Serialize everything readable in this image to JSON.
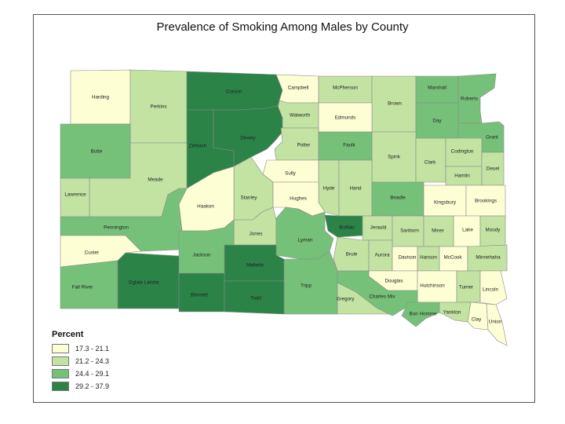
{
  "map": {
    "title": "Prevalence of Smoking Among Males by County",
    "legend": {
      "title": "Percent",
      "classes": [
        {
          "label": "17.3 - 21.1",
          "color": "#fefed5"
        },
        {
          "label": "21.2 - 24.3",
          "color": "#c2e3a2"
        },
        {
          "label": "24.4 - 29.1",
          "color": "#76c179"
        },
        {
          "label": "29.2 - 37.9",
          "color": "#2b8348"
        }
      ]
    },
    "counties": [
      {
        "name": "Harding",
        "class": 0
      },
      {
        "name": "Perkins",
        "class": 1
      },
      {
        "name": "Corson",
        "class": 3
      },
      {
        "name": "Campbell",
        "class": 0
      },
      {
        "name": "McPherson",
        "class": 1
      },
      {
        "name": "Brown",
        "class": 1
      },
      {
        "name": "Marshall",
        "class": 2
      },
      {
        "name": "Roberts",
        "class": 2
      },
      {
        "name": "Walworth",
        "class": 1
      },
      {
        "name": "Edmunds",
        "class": 0
      },
      {
        "name": "Day",
        "class": 2
      },
      {
        "name": "Grant",
        "class": 2
      },
      {
        "name": "Butte",
        "class": 2
      },
      {
        "name": "Ziebach",
        "class": 3
      },
      {
        "name": "Dewey",
        "class": 3
      },
      {
        "name": "Potter",
        "class": 1
      },
      {
        "name": "Faulk",
        "class": 2
      },
      {
        "name": "Spink",
        "class": 1
      },
      {
        "name": "Clark",
        "class": 1
      },
      {
        "name": "Codington",
        "class": 1
      },
      {
        "name": "Hamlin",
        "class": 1
      },
      {
        "name": "Deuel",
        "class": 1
      },
      {
        "name": "Meade",
        "class": 1
      },
      {
        "name": "Sully",
        "class": 0
      },
      {
        "name": "Hyde",
        "class": 1
      },
      {
        "name": "Hand",
        "class": 1
      },
      {
        "name": "Beadle",
        "class": 2
      },
      {
        "name": "Kingsbury",
        "class": 0
      },
      {
        "name": "Brookings",
        "class": 0
      },
      {
        "name": "Lawrence",
        "class": 1
      },
      {
        "name": "Stanley",
        "class": 1
      },
      {
        "name": "Hughes",
        "class": 0
      },
      {
        "name": "Haakon",
        "class": 0
      },
      {
        "name": "Pennington",
        "class": 2
      },
      {
        "name": "Buffalo",
        "class": 3
      },
      {
        "name": "Jerauld",
        "class": 1
      },
      {
        "name": "Sanborn",
        "class": 1
      },
      {
        "name": "Miner",
        "class": 1
      },
      {
        "name": "Lake",
        "class": 0
      },
      {
        "name": "Moody",
        "class": 1
      },
      {
        "name": "Jones",
        "class": 1
      },
      {
        "name": "Lyman",
        "class": 2
      },
      {
        "name": "Custer",
        "class": 0
      },
      {
        "name": "Jackson",
        "class": 2
      },
      {
        "name": "Brule",
        "class": 1
      },
      {
        "name": "Aurora",
        "class": 1
      },
      {
        "name": "Davison",
        "class": 0
      },
      {
        "name": "Hanson",
        "class": 1
      },
      {
        "name": "McCook",
        "class": 0
      },
      {
        "name": "Minnehaha",
        "class": 1
      },
      {
        "name": "Mellette",
        "class": 3
      },
      {
        "name": "Fall River",
        "class": 2
      },
      {
        "name": "Oglala Lakota",
        "class": 3
      },
      {
        "name": "Tripp",
        "class": 2
      },
      {
        "name": "Douglas",
        "class": 0
      },
      {
        "name": "Hutchinson",
        "class": 0
      },
      {
        "name": "Turner",
        "class": 1
      },
      {
        "name": "Lincoln",
        "class": 0
      },
      {
        "name": "Bennett",
        "class": 3
      },
      {
        "name": "Todd",
        "class": 3
      },
      {
        "name": "Gregory",
        "class": 1
      },
      {
        "name": "Charles Mix",
        "class": 2
      },
      {
        "name": "Bon Homme",
        "class": 2
      },
      {
        "name": "Yankton",
        "class": 1
      },
      {
        "name": "Clay",
        "class": 0
      },
      {
        "name": "Union",
        "class": 0
      }
    ]
  }
}
